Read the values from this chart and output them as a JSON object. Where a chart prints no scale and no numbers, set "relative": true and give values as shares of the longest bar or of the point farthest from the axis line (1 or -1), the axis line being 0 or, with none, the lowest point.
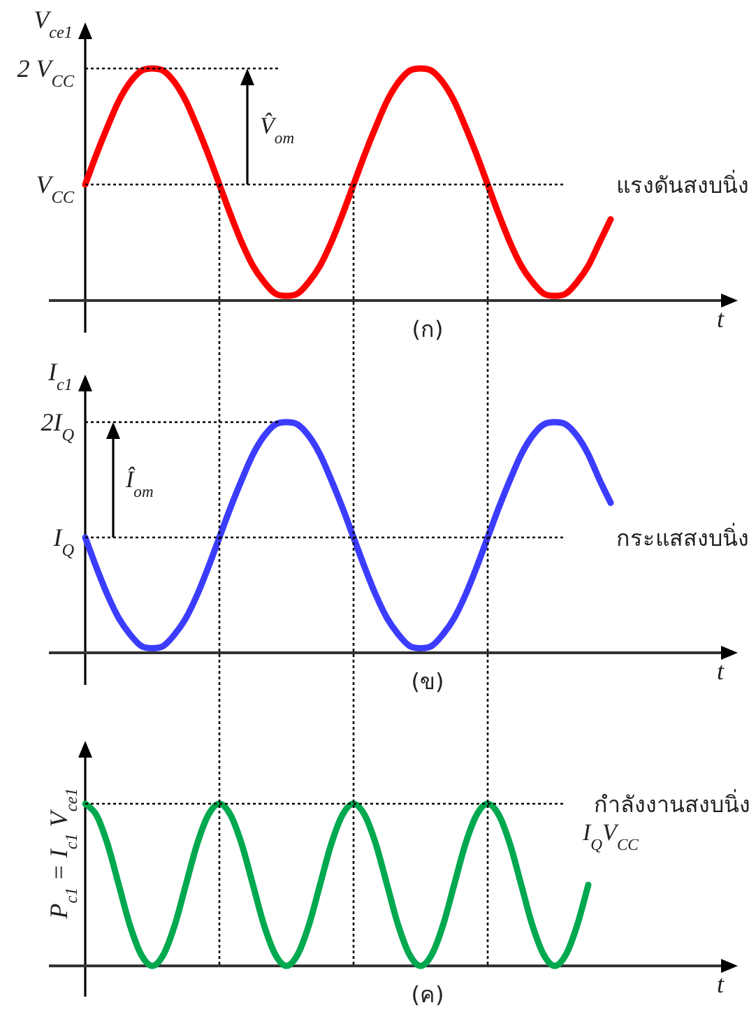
{
  "chart_data": [
    {
      "type": "line",
      "relative": true,
      "ylabel": "V$_{ce1}$",
      "xlabel": "t",
      "grid": "x",
      "categories": [
        null,
        null,
        null,
        null,
        null,
        null,
        null,
        null,
        null,
        null,
        null,
        null,
        null,
        null,
        null,
        null,
        null,
        null,
        null,
        null,
        null,
        null,
        null,
        null,
        null,
        null,
        null,
        null,
        null,
        null,
        null,
        null,
        null,
        null,
        null,
        null,
        null,
        null,
        null,
        null,
        null,
        null,
        null,
        null,
        null,
        null,
        null,
        null
      ],
      "series": [
        {
          "color": "#ff0000",
          "values": [
            0.5,
            0.63,
            0.75,
            0.86,
            0.94,
            0.99,
            1,
            0.99,
            0.94,
            0.86,
            0.75,
            0.63,
            0.5,
            0.37,
            0.25,
            0.15,
            0.08,
            0.03,
            0.02,
            0.03,
            0.08,
            0.15,
            0.25,
            0.37,
            0.5,
            0.63,
            0.75,
            0.86,
            0.94,
            0.99,
            1,
            0.99,
            0.94,
            0.86,
            0.75,
            0.63,
            0.5,
            0.37,
            0.25,
            0.15,
            0.08,
            0.03,
            0.02,
            0.03,
            0.08,
            0.15,
            0.25,
            0.35
          ]
        }
      ],
      "ref_lines": [
        {
          "axis": "y",
          "value": 1,
          "label": "2 V$_{CC}$",
          "line_style": "dotted"
        },
        {
          "axis": "y",
          "value": 0.5,
          "label": "V$_{CC}$",
          "line_style": "dotted"
        }
      ],
      "annotations": [
        "V̂$_{om}$",
        "แรงดันสงบนิ่ง",
        "(ก)"
      ]
    },
    {
      "type": "line",
      "relative": true,
      "ylabel": "I$_{c1}$",
      "xlabel": "t",
      "categories": [
        null,
        null,
        null,
        null,
        null,
        null,
        null,
        null,
        null,
        null,
        null,
        null,
        null,
        null,
        null,
        null,
        null,
        null,
        null,
        null,
        null,
        null,
        null,
        null,
        null,
        null,
        null,
        null,
        null,
        null,
        null,
        null,
        null,
        null,
        null,
        null,
        null,
        null,
        null,
        null,
        null,
        null,
        null,
        null,
        null,
        null,
        null,
        null
      ],
      "series": [
        {
          "color": "#3c3cff",
          "values": [
            0.5,
            0.37,
            0.25,
            0.15,
            0.08,
            0.03,
            0.02,
            0.03,
            0.08,
            0.15,
            0.25,
            0.37,
            0.5,
            0.63,
            0.75,
            0.86,
            0.94,
            0.99,
            1,
            0.99,
            0.94,
            0.86,
            0.75,
            0.63,
            0.5,
            0.37,
            0.25,
            0.15,
            0.08,
            0.03,
            0.02,
            0.03,
            0.08,
            0.15,
            0.25,
            0.37,
            0.5,
            0.63,
            0.75,
            0.86,
            0.94,
            0.99,
            1,
            0.99,
            0.94,
            0.86,
            0.75,
            0.65
          ]
        }
      ],
      "ref_lines": [
        {
          "axis": "y",
          "value": 1,
          "label": "2I$_{Q}$",
          "line_style": "dotted"
        },
        {
          "axis": "y",
          "value": 0.5,
          "label": "I$_{Q}$",
          "line_style": "dotted"
        }
      ],
      "annotations": [
        "Î$_{om}$",
        "กระแสสงบนิ่ง",
        "(ข)"
      ]
    },
    {
      "type": "line",
      "relative": true,
      "ylabel": "P$_{c1}$ = I$_{c1}$ V$_{ce1}$",
      "xlabel": "t",
      "categories": [
        null,
        null,
        null,
        null,
        null,
        null,
        null,
        null,
        null,
        null,
        null,
        null,
        null,
        null,
        null,
        null,
        null,
        null,
        null,
        null,
        null,
        null,
        null,
        null,
        null,
        null,
        null,
        null,
        null,
        null,
        null,
        null,
        null,
        null,
        null,
        null,
        null,
        null,
        null,
        null,
        null,
        null,
        null,
        null,
        null,
        null,
        null,
        null
      ],
      "series": [
        {
          "color": "#00a84f",
          "values": [
            1,
            0.93,
            0.75,
            0.5,
            0.25,
            0.07,
            0,
            0.07,
            0.25,
            0.5,
            0.75,
            0.93,
            1,
            0.93,
            0.75,
            0.5,
            0.25,
            0.07,
            0,
            0.07,
            0.25,
            0.5,
            0.75,
            0.93,
            1,
            0.93,
            0.75,
            0.5,
            0.25,
            0.07,
            0,
            0.07,
            0.25,
            0.5,
            0.75,
            0.93,
            1,
            0.93,
            0.75,
            0.5,
            0.25,
            0.07,
            0,
            0.07,
            0.25,
            0.5,
            null,
            null
          ]
        }
      ],
      "ref_lines": [
        {
          "axis": "y",
          "value": 1,
          "label": "I$_{Q}$V$_{CC}$",
          "line_style": "dotted"
        }
      ],
      "annotations": [
        "กำลังงานสงบนิ่ง",
        "(ค)"
      ]
    }
  ]
}
